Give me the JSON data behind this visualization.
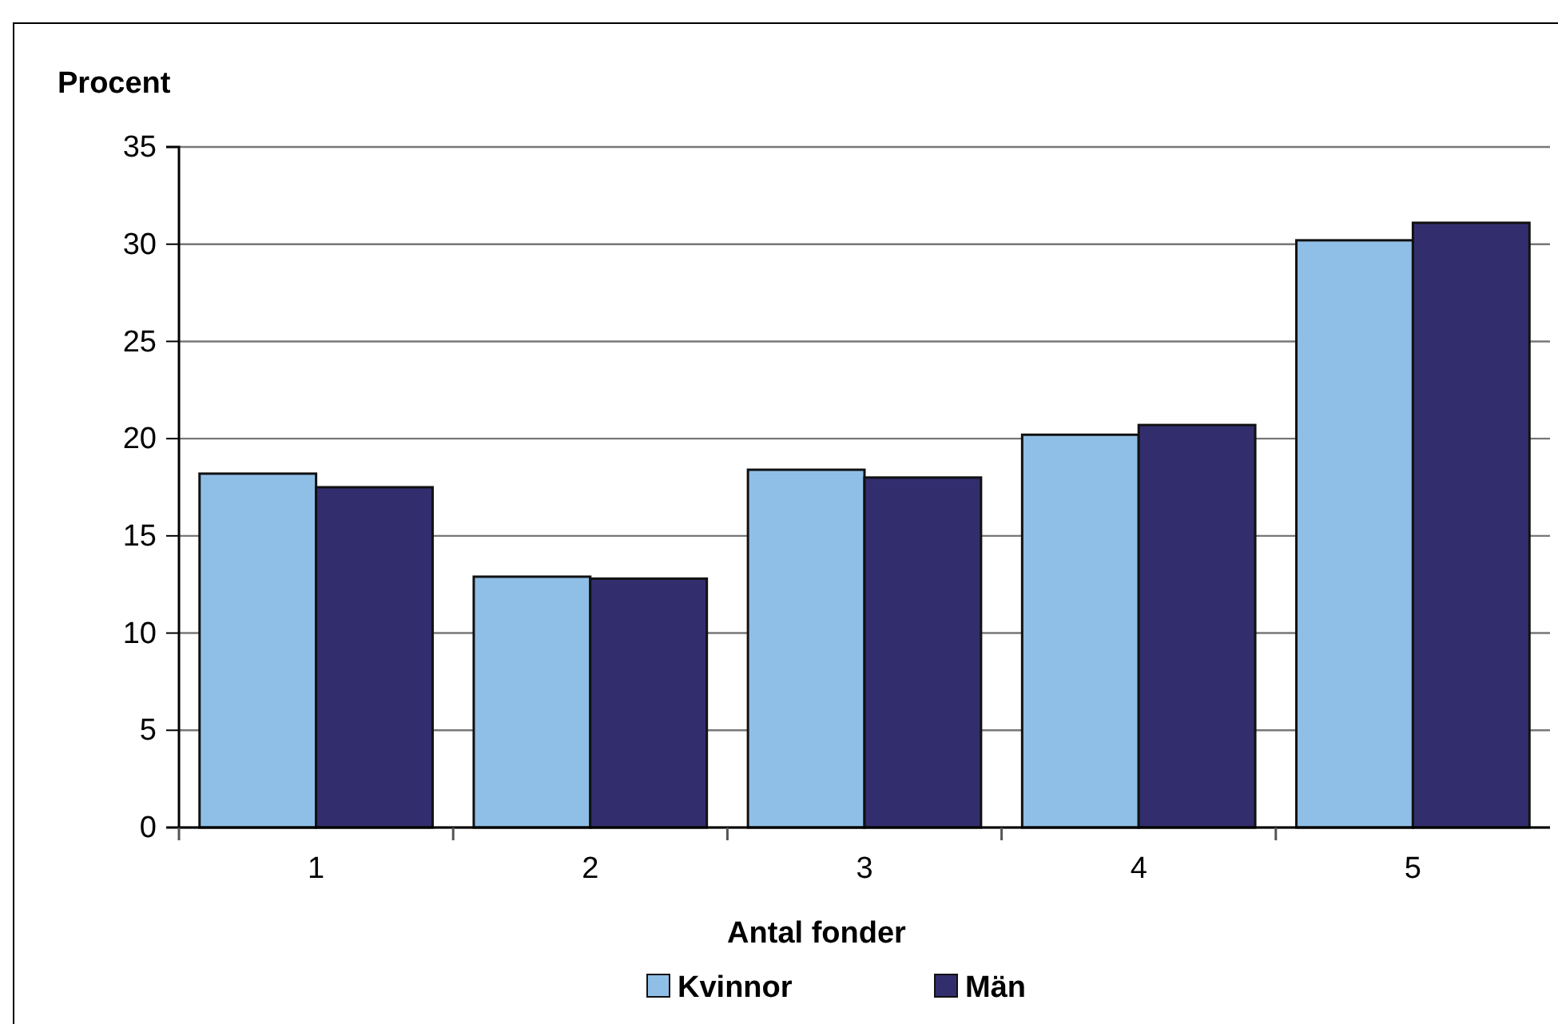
{
  "chart_data": {
    "type": "bar",
    "ylabel": "Procent",
    "xlabel": "Antal fonder",
    "categories": [
      "1",
      "2",
      "3",
      "4",
      "5"
    ],
    "series": [
      {
        "name": "Kvinnor",
        "color": "#8fbfe7",
        "values": [
          18.2,
          12.9,
          18.4,
          20.2,
          30.2
        ]
      },
      {
        "name": "Män",
        "color": "#322e6e",
        "values": [
          17.5,
          12.8,
          18.0,
          20.7,
          31.1
        ]
      }
    ],
    "ylim": [
      0,
      35
    ],
    "yticks": [
      0,
      5,
      10,
      15,
      20,
      25,
      30,
      35
    ],
    "grid": "y",
    "legend": "bottom"
  }
}
